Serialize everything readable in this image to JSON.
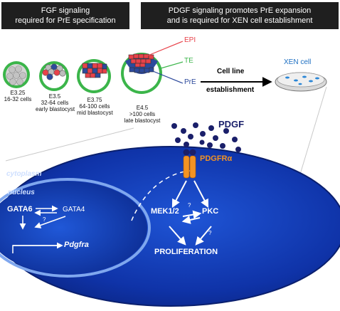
{
  "header_left": {
    "line1": "FGF signaling",
    "line2": "required for PrE specification"
  },
  "header_right": {
    "line1": "PDGF signaling promotes PrE expansion",
    "line2": "and is required for XEN cell establishment"
  },
  "stages": [
    {
      "stage": "E3.25",
      "cells": "16-32 cells",
      "desc": ""
    },
    {
      "stage": "E3.5",
      "cells": "32-64 cells",
      "desc": "early blastocyst"
    },
    {
      "stage": "E3.75",
      "cells": "64-100 cells",
      "desc": "mid blastocyst"
    },
    {
      "stage": "E4.5",
      "cells": ">100 cells",
      "desc": "late blastocyst"
    }
  ],
  "lineage_labels": {
    "epi": "EPI",
    "te": "TE",
    "pre": "PrE"
  },
  "cell_line": {
    "line1": "Cell line",
    "line2": "establishment"
  },
  "xen_label": "XEN cell",
  "pdgf_label": "PDGF",
  "receptor_label": "PDGFRα",
  "cytoplasm_label": "cytoplasm",
  "nucleus_label": "nucleus",
  "nuclear_genes": {
    "gata6": "GATA6",
    "gata4": "GATA4",
    "pdgfra": "Pdgfra",
    "unknown": "?"
  },
  "pathway": {
    "mek": "MEK1/2",
    "pkc": "PKC",
    "proliferation": "PROLIFERATION",
    "unknown1": "?",
    "unknown2": "?"
  },
  "colors": {
    "epi": "#e8424a",
    "te": "#3bb54a",
    "pre": "#2d4a9c",
    "cell_blue": "#0d2a8c",
    "receptor": "#f39323",
    "ligand": "#1a1f6a"
  }
}
